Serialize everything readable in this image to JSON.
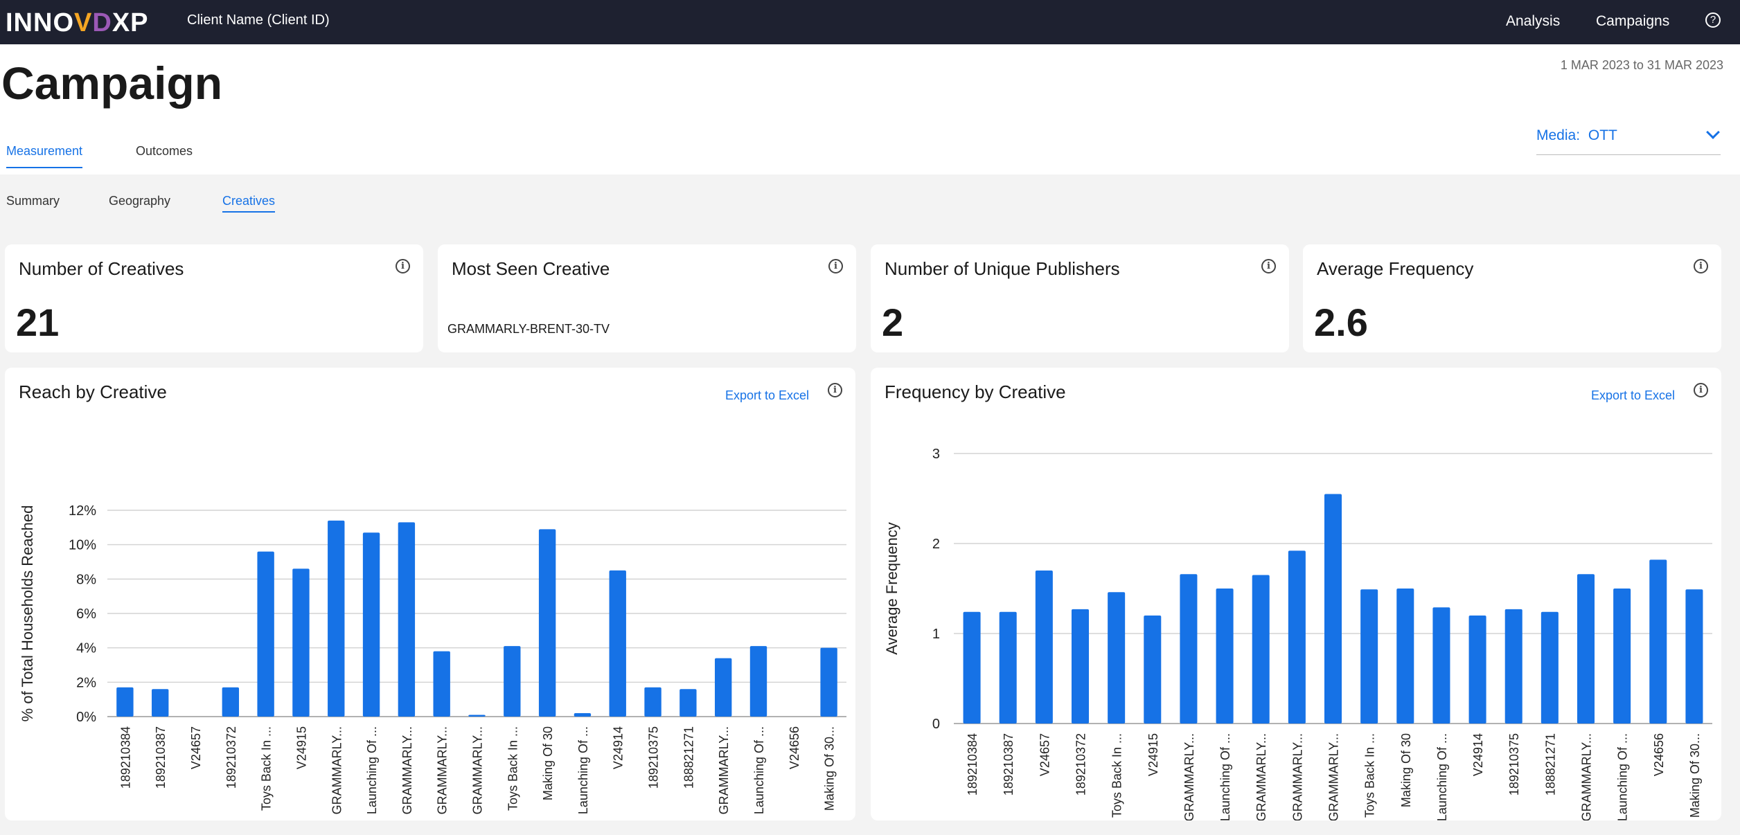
{
  "topbar": {
    "logo_prefix": "INNO",
    "logo_v": "V",
    "logo_d": "D",
    "logo_suffix": "XP",
    "client": "Client Name (Client ID)",
    "nav": [
      "Analysis",
      "Campaigns"
    ],
    "help_icon": "help-circle-icon"
  },
  "header": {
    "title": "Campaign",
    "date_range": "1 MAR 2023 to 31 MAR 2023",
    "tabs": [
      "Measurement",
      "Outcomes"
    ],
    "media_label": "Media:",
    "media_value": "OTT"
  },
  "subtabs": [
    "Summary",
    "Geography",
    "Creatives"
  ],
  "kpis": [
    {
      "title": "Number of Creatives",
      "value": "21"
    },
    {
      "title": "Most Seen Creative",
      "value": "GRAMMARLY-BRENT-30-TV"
    },
    {
      "title": "Number of Unique Publishers",
      "value": "2"
    },
    {
      "title": "Average Frequency",
      "value": "2.6"
    }
  ],
  "export_label": "Export to Excel",
  "info_glyph": "i",
  "chart_data": [
    {
      "type": "bar",
      "title": "Reach by Creative",
      "ylabel": "% of Total Households Reached",
      "ylim": [
        0,
        12
      ],
      "yticks": [
        "0%",
        "2%",
        "4%",
        "6%",
        "8%",
        "10%",
        "12%"
      ],
      "grid": true,
      "categories": [
        "189210384",
        "189210387",
        "V24657",
        "189210372",
        "Toys Back In ...",
        "V24915",
        "GRAMMARLY...",
        "Launching Of ...",
        "GRAMMARLY...",
        "GRAMMARLY...",
        "GRAMMARLY...",
        "Toys Back In ...",
        "Making Of 30",
        "Launching Of ...",
        "V24914",
        "189210375",
        "188821271",
        "GRAMMARLY...",
        "Launching Of ...",
        "V24656",
        "Making Of 30..."
      ],
      "values": [
        1.7,
        1.6,
        0,
        1.7,
        9.6,
        8.6,
        11.4,
        10.7,
        11.3,
        3.8,
        0.1,
        4.1,
        10.9,
        0.2,
        8.5,
        1.7,
        1.6,
        3.4,
        4.1,
        0,
        4.0
      ],
      "color": "#1672e6"
    },
    {
      "type": "bar",
      "title": "Frequency by Creative",
      "ylabel": "Average Frequency",
      "ylim": [
        0,
        3
      ],
      "yticks": [
        "0",
        "1",
        "2",
        "3"
      ],
      "grid": true,
      "categories": [
        "189210384",
        "189210387",
        "V24657",
        "189210372",
        "Toys Back In ...",
        "V24915",
        "GRAMMARLY...",
        "Launching Of ...",
        "GRAMMARLY...",
        "GRAMMARLY...",
        "GRAMMARLY...",
        "Toys Back In ...",
        "Making Of 30",
        "Launching Of ...",
        "V24914",
        "189210375",
        "188821271",
        "GRAMMARLY...",
        "Launching Of ...",
        "V24656",
        "Making Of 30..."
      ],
      "values": [
        1.24,
        1.24,
        1.7,
        1.27,
        1.46,
        1.2,
        1.66,
        1.5,
        1.65,
        1.92,
        2.55,
        1.49,
        1.5,
        1.29,
        1.2,
        1.27,
        1.24,
        1.66,
        1.5,
        1.82,
        1.49
      ],
      "color": "#1672e6"
    }
  ]
}
